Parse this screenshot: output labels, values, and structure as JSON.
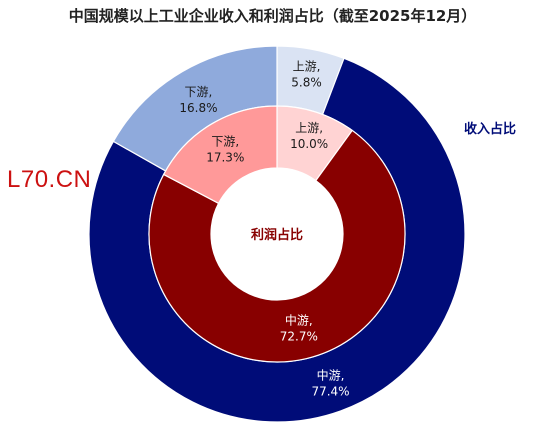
{
  "title": "中国规模以上工业企业收入和利润占比（截至2025年12月）",
  "watermark": "L70.CN",
  "chart_data": {
    "type": "pie",
    "variant": "nested-donut",
    "title": "中国规模以上工业企业收入和利润占比（截至2025年12月）",
    "rings": [
      {
        "name": "收入占比",
        "position": "outer",
        "slices": [
          {
            "label": "上游",
            "value": 5.8,
            "display": "5.8%",
            "color": "#dae3f3",
            "text_color": "#1a1a1a"
          },
          {
            "label": "中游",
            "value": 77.4,
            "display": "77.4%",
            "color": "#000c78",
            "text_color": "#ffffff"
          },
          {
            "label": "下游",
            "value": 16.8,
            "display": "16.8%",
            "color": "#8faadc",
            "text_color": "#1a1a1a"
          }
        ]
      },
      {
        "name": "利润占比",
        "position": "inner",
        "slices": [
          {
            "label": "上游",
            "value": 10.0,
            "display": "10.0%",
            "color": "#ffd3d3",
            "text_color": "#1a1a1a"
          },
          {
            "label": "中游",
            "value": 72.7,
            "display": "72.7%",
            "color": "#880000",
            "text_color": "#ffffff"
          },
          {
            "label": "下游",
            "value": 17.3,
            "display": "17.3%",
            "color": "#ff9999",
            "text_color": "#1a1a1a"
          }
        ]
      }
    ],
    "ring_label_colors": {
      "outer": "#000c78",
      "inner": "#880000"
    },
    "start_angle": "12 o'clock",
    "direction": "clockwise"
  }
}
